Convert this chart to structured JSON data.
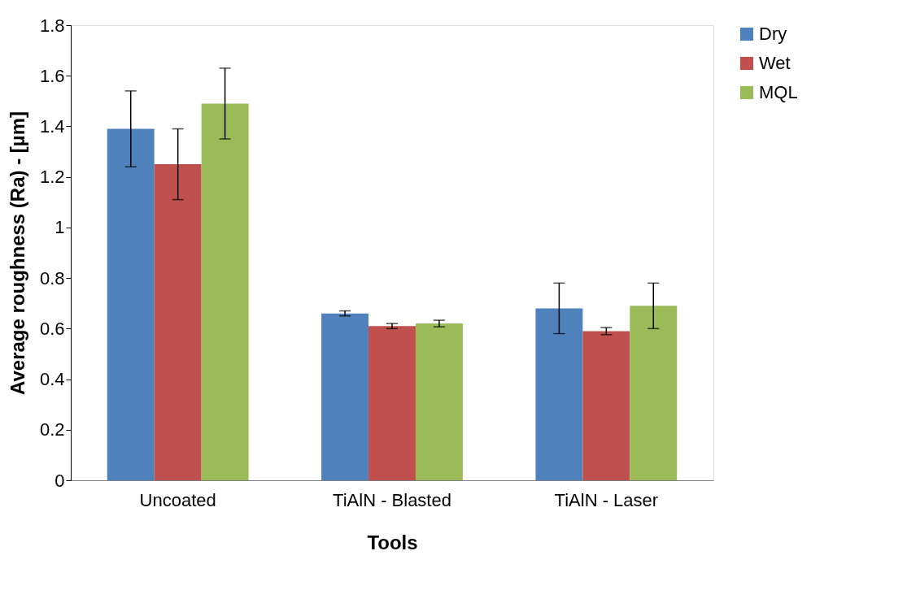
{
  "chart_data": {
    "type": "bar",
    "xlabel": "Tools",
    "ylabel": "Average roughness (Ra) - [µm]",
    "categories": [
      "Uncoated",
      "TiAlN - Blasted",
      "TiAlN - Laser"
    ],
    "series": [
      {
        "name": "Dry",
        "color": "#4f81bd",
        "values": [
          1.39,
          0.66,
          0.68
        ],
        "errors": [
          0.15,
          0.01,
          0.1
        ]
      },
      {
        "name": "Wet",
        "color": "#c0504d",
        "values": [
          1.25,
          0.61,
          0.59
        ],
        "errors": [
          0.14,
          0.01,
          0.014
        ]
      },
      {
        "name": "MQL",
        "color": "#9bbb59",
        "values": [
          1.49,
          0.62,
          0.69
        ],
        "errors": [
          0.14,
          0.013,
          0.09
        ]
      }
    ],
    "ylim": [
      0,
      1.8
    ],
    "yticks": [
      0,
      0.2,
      0.4,
      0.6,
      0.8,
      1,
      1.2,
      1.4,
      1.6,
      1.8
    ],
    "grid": false,
    "legend": "right"
  }
}
